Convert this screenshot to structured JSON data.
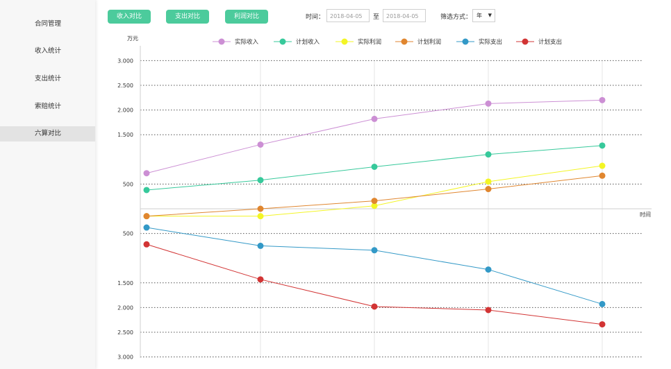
{
  "sidebar": {
    "items": [
      {
        "label": "合同管理",
        "active": false
      },
      {
        "label": "收入统计",
        "active": false
      },
      {
        "label": "支出统计",
        "active": false
      },
      {
        "label": "索赔统计",
        "active": false
      },
      {
        "label": "六算对比",
        "active": true
      }
    ]
  },
  "toolbar": {
    "tabs": [
      "收入对比",
      "支出对比",
      "利润对比"
    ],
    "time_label": "时间：",
    "start_date": "2018-04-05",
    "to_label": "至",
    "end_date": "2018-04-05",
    "filter_label": "筛选方式：",
    "filter_value": "年"
  },
  "chart_data": {
    "type": "line",
    "ylabel": "万元",
    "xlabel": "时间",
    "x": [
      1,
      2,
      3,
      4,
      5
    ],
    "ylim": [
      -3300,
      3300
    ],
    "upper_ticks": [
      {
        "value": 3000,
        "label": "3.000"
      },
      {
        "value": 2500,
        "label": "2.500"
      },
      {
        "value": 2000,
        "label": "2.000"
      },
      {
        "value": 1500,
        "label": "1.500"
      },
      {
        "value": 500,
        "label": "500"
      }
    ],
    "lower_ticks": [
      {
        "value": -500,
        "label": "500"
      },
      {
        "value": -1500,
        "label": "1.500"
      },
      {
        "value": -2000,
        "label": "2.000"
      },
      {
        "value": -2500,
        "label": "2.500"
      },
      {
        "value": -3000,
        "label": "3.000"
      }
    ],
    "grid": true,
    "legend_position": "top",
    "series": [
      {
        "name": "实际收入",
        "color": "#cc8fd4",
        "values": [
          720,
          1300,
          1820,
          2130,
          2200
        ]
      },
      {
        "name": "计划收入",
        "color": "#37c99b",
        "values": [
          380,
          580,
          850,
          1100,
          1280
        ]
      },
      {
        "name": "实际利润",
        "color": "#f3f525",
        "values": [
          -150,
          -150,
          60,
          550,
          870
        ]
      },
      {
        "name": "计划利润",
        "color": "#e0862f",
        "values": [
          -150,
          0,
          160,
          400,
          670
        ]
      },
      {
        "name": "实际支出",
        "color": "#3399c7",
        "values": [
          -380,
          -750,
          -840,
          -1230,
          -1930
        ]
      },
      {
        "name": "计划支出",
        "color": "#d23434",
        "values": [
          -720,
          -1430,
          -1980,
          -2050,
          -2340
        ]
      }
    ]
  }
}
